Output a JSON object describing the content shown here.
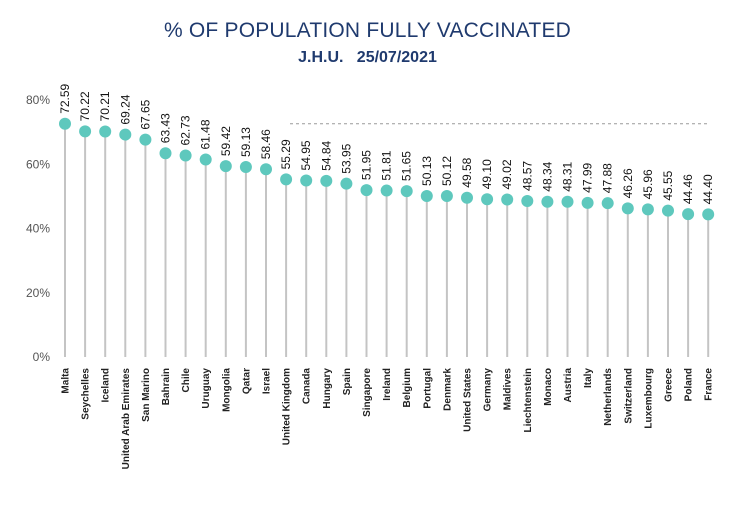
{
  "chart_data": {
    "type": "scatter",
    "style": "lollipop",
    "title": "% OF POPULATION FULLY VACCINATED",
    "subtitle": "J.H.U.   25/07/2021",
    "xlabel": "",
    "ylabel": "",
    "ylim": [
      0,
      80
    ],
    "yticks": [
      "0%",
      "20%",
      "40%",
      "60%",
      "80%"
    ],
    "reference_line": 72.59,
    "categories": [
      "Malta",
      "Seychelles",
      "Iceland",
      "United Arab Emirates",
      "San Marino",
      "Bahrain",
      "Chile",
      "Uruguay",
      "Mongolia",
      "Qatar",
      "Israel",
      "United Kingdom",
      "Canada",
      "Hungary",
      "Spain",
      "Singapore",
      "Ireland",
      "Belgium",
      "Portugal",
      "Denmark",
      "United States",
      "Germany",
      "Maldives",
      "Liechtenstein",
      "Monaco",
      "Austria",
      "Italy",
      "Netherlands",
      "Switzerland",
      "Luxembourg",
      "Greece",
      "Poland",
      "France"
    ],
    "values": [
      72.59,
      70.22,
      70.21,
      69.24,
      67.65,
      63.43,
      62.73,
      61.48,
      59.42,
      59.13,
      58.46,
      55.29,
      54.95,
      54.84,
      53.95,
      51.95,
      51.81,
      51.65,
      50.13,
      50.12,
      49.58,
      49.1,
      49.02,
      48.57,
      48.34,
      48.31,
      47.99,
      47.88,
      46.26,
      45.96,
      45.55,
      44.46,
      44.4
    ],
    "value_labels": [
      "72.59",
      "70.22",
      "70.21",
      "69.24",
      "67.65",
      "63.43",
      "62.73",
      "61.48",
      "59.42",
      "59.13",
      "58.46",
      "55.29",
      "54.95",
      "54.84",
      "53.95",
      "51.95",
      "51.81",
      "51.65",
      "50.13",
      "50.12",
      "49.58",
      "49.10",
      "49.02",
      "48.57",
      "48.34",
      "48.31",
      "47.99",
      "47.88",
      "46.26",
      "45.96",
      "45.55",
      "44.46",
      "44.40"
    ],
    "grid": false,
    "legend": "none",
    "colors": {
      "marker": "#5ec8bd",
      "stem": "#c4c4c4",
      "title": "#1f3a6e",
      "reference": "#9a9a9a"
    }
  }
}
